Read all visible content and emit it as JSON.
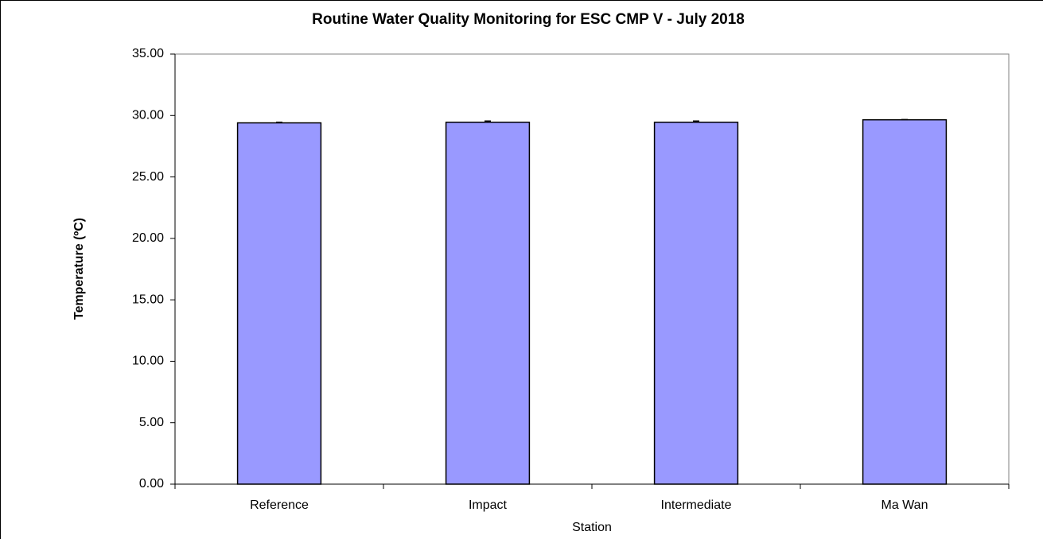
{
  "chart_data": {
    "type": "bar",
    "title": "Routine Water Quality Monitoring for ESC CMP V -  July 2018",
    "x_label": "Station",
    "y_label": "Temperature (ºC)",
    "categories": [
      "Reference",
      "Impact",
      "Intermediate",
      "Ma Wan"
    ],
    "values": [
      29.4,
      29.45,
      29.45,
      29.65
    ],
    "errors": [
      0.05,
      0.1,
      0.1,
      0.02
    ],
    "color": "#9999ff",
    "ylim": [
      0,
      35
    ],
    "yticks": [
      {
        "value": 0,
        "label": "0.00"
      },
      {
        "value": 5,
        "label": "5.00"
      },
      {
        "value": 10,
        "label": "10.00"
      },
      {
        "value": 15,
        "label": "15.00"
      },
      {
        "value": 20,
        "label": "20.00"
      },
      {
        "value": 25,
        "label": "25.00"
      },
      {
        "value": 30,
        "label": "30.00"
      },
      {
        "value": 35,
        "label": "35.00"
      }
    ],
    "grid": false
  }
}
